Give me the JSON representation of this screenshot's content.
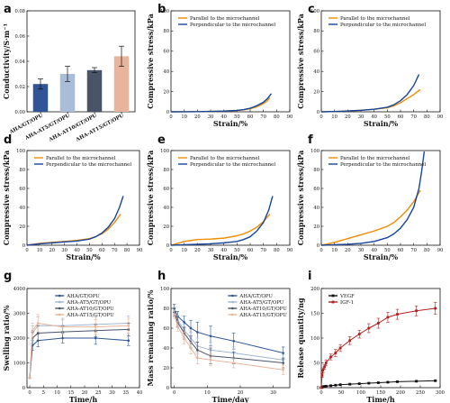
{
  "chart_data": [
    {
      "id": "a",
      "letter": "a",
      "type": "bar",
      "ylabel": "Conductivity/S·m⁻¹",
      "ylim": [
        0,
        0.08
      ],
      "yticks": [
        0,
        0.02,
        0.04,
        0.06,
        0.08
      ],
      "ytick_labels": [
        "0.00",
        "0.02",
        "0.04",
        "0.06",
        "0.08"
      ],
      "categories": [
        "AHA/GT/OPU",
        "AHA-AT5/GT/OPU",
        "AHA-AT10/GT/OPU",
        "AHA-AT15/GT/OPU"
      ],
      "values": [
        0.022,
        0.03,
        0.033,
        0.044
      ],
      "errors": [
        0.004,
        0.006,
        0.002,
        0.008
      ],
      "colors": [
        "#2f5597",
        "#a9bcd8",
        "#4a5469",
        "#e8b49b"
      ]
    },
    {
      "id": "b",
      "letter": "b",
      "type": "line",
      "xlabel": "Strain/%",
      "ylabel": "Compressive stress/kPa",
      "xlim": [
        0,
        90
      ],
      "ylim": [
        0,
        100
      ],
      "xticks": [
        0,
        10,
        20,
        30,
        40,
        50,
        60,
        70,
        80,
        90
      ],
      "yticks": [
        0,
        20,
        40,
        60,
        80,
        100
      ],
      "legend": "top-left",
      "series": [
        {
          "name": "Parallel to the microchannel",
          "color": "#f08c00",
          "x": [
            0,
            10,
            20,
            30,
            40,
            50,
            55,
            60,
            65,
            70,
            73,
            75
          ],
          "y": [
            0,
            0.1,
            0.2,
            0.4,
            0.7,
            1.3,
            2,
            3,
            5,
            8,
            11,
            14
          ]
        },
        {
          "name": "Perpendicular to the microchannel",
          "color": "#17459c",
          "x": [
            0,
            10,
            20,
            30,
            40,
            50,
            55,
            60,
            65,
            70,
            73,
            76
          ],
          "y": [
            0,
            0.1,
            0.2,
            0.4,
            0.7,
            1.4,
            2.2,
            3.5,
            6,
            9.5,
            13,
            18
          ]
        }
      ]
    },
    {
      "id": "c",
      "letter": "c",
      "type": "line",
      "xlabel": "Strain/%",
      "ylabel": "Compressive stress/kPa",
      "xlim": [
        0,
        90
      ],
      "ylim": [
        0,
        100
      ],
      "xticks": [
        0,
        10,
        20,
        30,
        40,
        50,
        60,
        70,
        80,
        90
      ],
      "yticks": [
        0,
        20,
        40,
        60,
        80,
        100
      ],
      "legend": "top-left",
      "series": [
        {
          "name": "Parallel to the microchannel",
          "color": "#f08c00",
          "x": [
            0,
            10,
            20,
            30,
            40,
            50,
            55,
            60,
            65,
            70,
            75
          ],
          "y": [
            0,
            0.3,
            0.8,
            1.5,
            2.5,
            4,
            6,
            9,
            13,
            17,
            22
          ]
        },
        {
          "name": "Perpendicular to the microchannel",
          "color": "#17459c",
          "x": [
            0,
            10,
            20,
            30,
            40,
            50,
            55,
            60,
            65,
            70,
            74
          ],
          "y": [
            0,
            0.3,
            0.8,
            1.5,
            2.5,
            4.5,
            7,
            11,
            17,
            26,
            37
          ]
        }
      ]
    },
    {
      "id": "d",
      "letter": "d",
      "type": "line",
      "xlabel": "Strain/%",
      "ylabel": "Compressive stress/kPa",
      "xlim": [
        0,
        90
      ],
      "ylim": [
        0,
        100
      ],
      "xticks": [
        0,
        10,
        20,
        30,
        40,
        50,
        60,
        70,
        80,
        90
      ],
      "yticks": [
        0,
        20,
        40,
        60,
        80,
        100
      ],
      "legend": "top-left",
      "series": [
        {
          "name": "Parallel to the microchannel",
          "color": "#f08c00",
          "x": [
            0,
            10,
            20,
            30,
            40,
            50,
            55,
            60,
            65,
            70,
            75
          ],
          "y": [
            0,
            2,
            3,
            4,
            5,
            7,
            9,
            12,
            17,
            24,
            33
          ]
        },
        {
          "name": "Perpendicular to the microchannel",
          "color": "#17459c",
          "x": [
            0,
            10,
            20,
            30,
            40,
            50,
            55,
            60,
            65,
            70,
            74,
            77
          ],
          "y": [
            0,
            1.5,
            2.5,
            3.5,
            4.5,
            6.5,
            9,
            13,
            19,
            28,
            40,
            52
          ]
        }
      ]
    },
    {
      "id": "e",
      "letter": "e",
      "type": "line",
      "xlabel": "Strain/%",
      "ylabel": "Compressive stress/kPa",
      "xlim": [
        0,
        90
      ],
      "ylim": [
        0,
        100
      ],
      "xticks": [
        0,
        10,
        20,
        30,
        40,
        50,
        60,
        70,
        80,
        90
      ],
      "yticks": [
        0,
        20,
        40,
        60,
        80,
        100
      ],
      "legend": "top-left",
      "series": [
        {
          "name": "Parallel to the microchannel",
          "color": "#f08c00",
          "x": [
            0,
            5,
            10,
            15,
            20,
            30,
            40,
            50,
            55,
            60,
            65,
            70,
            75
          ],
          "y": [
            0,
            2,
            4,
            5,
            6,
            6.5,
            7.5,
            10,
            12,
            15,
            19,
            25,
            33
          ]
        },
        {
          "name": "Perpendicular to the microchannel",
          "color": "#17459c",
          "x": [
            0,
            10,
            20,
            30,
            40,
            50,
            55,
            60,
            65,
            70,
            74,
            77
          ],
          "y": [
            0,
            0.5,
            1,
            1.5,
            2.5,
            4,
            6,
            9,
            15,
            24,
            37,
            52
          ]
        }
      ]
    },
    {
      "id": "f",
      "letter": "f",
      "type": "line",
      "xlabel": "Strain/%",
      "ylabel": "Compressive stress/kPa",
      "xlim": [
        0,
        90
      ],
      "ylim": [
        0,
        100
      ],
      "xticks": [
        0,
        10,
        20,
        30,
        40,
        50,
        60,
        70,
        80,
        90
      ],
      "yticks": [
        0,
        20,
        40,
        60,
        80,
        100
      ],
      "legend": "top-left",
      "series": [
        {
          "name": "Parallel to the microchannel",
          "color": "#f08c00",
          "x": [
            0,
            10,
            20,
            30,
            40,
            50,
            55,
            60,
            65,
            70,
            75
          ],
          "y": [
            0,
            3,
            7,
            11,
            15,
            20,
            24,
            30,
            37,
            46,
            58
          ]
        },
        {
          "name": "Perpendicular to the microchannel",
          "color": "#17459c",
          "x": [
            0,
            10,
            20,
            30,
            40,
            50,
            55,
            60,
            65,
            70,
            74,
            76,
            78
          ],
          "y": [
            0,
            0.5,
            1,
            2,
            4,
            8,
            12,
            18,
            27,
            40,
            60,
            78,
            99
          ]
        }
      ]
    },
    {
      "id": "g",
      "letter": "g",
      "type": "line",
      "xlabel": "Time/h",
      "ylabel": "Swelling ratio/%",
      "xlim": [
        -1,
        40
      ],
      "ylim": [
        0,
        4000
      ],
      "xticks": [
        0,
        5,
        10,
        15,
        20,
        25,
        30,
        35,
        40
      ],
      "yticks": [
        0,
        1000,
        2000,
        3000,
        4000
      ],
      "legend": "top-center",
      "markers": true,
      "series": [
        {
          "name": "AHA/GT/OPU",
          "color": "#2f5597",
          "x": [
            0,
            1,
            3,
            12,
            24,
            36
          ],
          "y": [
            400,
            1700,
            1900,
            2000,
            2000,
            1900
          ],
          "err": [
            0,
            200,
            250,
            200,
            250,
            200
          ]
        },
        {
          "name": "AHA-AT5/GT/OPU",
          "color": "#9fb6d6",
          "x": [
            0,
            1,
            3,
            12,
            24,
            36
          ],
          "y": [
            400,
            2200,
            2500,
            2500,
            2550,
            2600
          ],
          "err": [
            0,
            300,
            350,
            300,
            300,
            300
          ]
        },
        {
          "name": "AHA-AT10/GT/OPU",
          "color": "#4a5469",
          "x": [
            0,
            1,
            3,
            12,
            24,
            36
          ],
          "y": [
            400,
            2000,
            2200,
            2250,
            2300,
            2350
          ],
          "err": [
            0,
            250,
            300,
            250,
            250,
            250
          ]
        },
        {
          "name": "AHA-AT15/GT/OPU",
          "color": "#e8b49b",
          "x": [
            0,
            1,
            3,
            12,
            24,
            36
          ],
          "y": [
            400,
            2300,
            2600,
            2450,
            2450,
            2500
          ],
          "err": [
            0,
            300,
            350,
            300,
            300,
            300
          ]
        }
      ]
    },
    {
      "id": "h",
      "letter": "h",
      "type": "line",
      "xlabel": "Time/day",
      "ylabel": "Mass remaining ratio/%",
      "xlim": [
        -1,
        35
      ],
      "ylim": [
        0,
        100
      ],
      "xticks": [
        0,
        10,
        20,
        30
      ],
      "yticks": [
        0,
        20,
        40,
        60,
        80,
        100
      ],
      "legend": "top-right",
      "markers": true,
      "series": [
        {
          "name": "AHA/GT/OPU",
          "color": "#2f5597",
          "x": [
            0,
            1,
            3,
            5,
            7,
            11,
            18,
            33
          ],
          "y": [
            80,
            72,
            66,
            60,
            56,
            52,
            47,
            35
          ],
          "err": [
            4,
            5,
            6,
            8,
            10,
            10,
            8,
            6
          ]
        },
        {
          "name": "AHA-AT5/GT/OPU",
          "color": "#9fb6d6",
          "x": [
            0,
            1,
            3,
            5,
            7,
            11,
            18,
            33
          ],
          "y": [
            78,
            68,
            58,
            50,
            42,
            38,
            35,
            28
          ],
          "err": [
            4,
            5,
            6,
            6,
            8,
            8,
            6,
            5
          ]
        },
        {
          "name": "AHA-AT10/GT/OPU",
          "color": "#4a5469",
          "x": [
            0,
            1,
            3,
            5,
            7,
            11,
            18,
            33
          ],
          "y": [
            76,
            66,
            55,
            46,
            38,
            32,
            30,
            25
          ],
          "err": [
            4,
            5,
            6,
            6,
            8,
            8,
            6,
            5
          ]
        },
        {
          "name": "AHA-AT15/GT/OPU",
          "color": "#e8b49b",
          "x": [
            0,
            1,
            3,
            5,
            7,
            11,
            18,
            33
          ],
          "y": [
            74,
            62,
            50,
            40,
            30,
            28,
            25,
            18
          ],
          "err": [
            4,
            5,
            6,
            6,
            6,
            6,
            5,
            5
          ]
        }
      ]
    },
    {
      "id": "i",
      "letter": "i",
      "type": "line",
      "xlabel": "Time/h",
      "ylabel": "Release quantity/ng",
      "xlim": [
        0,
        300
      ],
      "ylim": [
        0,
        200
      ],
      "xticks": [
        0,
        50,
        100,
        150,
        200,
        250,
        300
      ],
      "yticks": [
        0,
        50,
        100,
        150,
        200
      ],
      "legend": "top-left",
      "markers": true,
      "series": [
        {
          "name": "VEGF",
          "color": "#111111",
          "marker": "square",
          "x": [
            0,
            2,
            4,
            8,
            12,
            24,
            36,
            48,
            72,
            96,
            120,
            144,
            168,
            192,
            240,
            288
          ],
          "y": [
            0,
            1,
            2,
            2.5,
            3,
            4,
            5,
            6,
            7,
            8,
            9,
            10,
            11,
            12,
            13,
            14
          ],
          "err": [
            0,
            0.3,
            0.3,
            0.4,
            0.4,
            0.5,
            0.5,
            0.5,
            0.6,
            0.6,
            0.6,
            0.7,
            0.7,
            0.8,
            0.8,
            1
          ]
        },
        {
          "name": "IGF-1",
          "color": "#b22222",
          "marker": "square",
          "x": [
            0,
            2,
            4,
            8,
            12,
            24,
            36,
            48,
            72,
            96,
            120,
            144,
            168,
            192,
            240,
            288
          ],
          "y": [
            0,
            25,
            35,
            42,
            50,
            62,
            70,
            80,
            95,
            108,
            120,
            130,
            142,
            148,
            155,
            160
          ],
          "err": [
            0,
            4,
            5,
            5,
            6,
            6,
            7,
            7,
            8,
            8,
            9,
            10,
            10,
            10,
            10,
            12
          ]
        }
      ]
    }
  ]
}
